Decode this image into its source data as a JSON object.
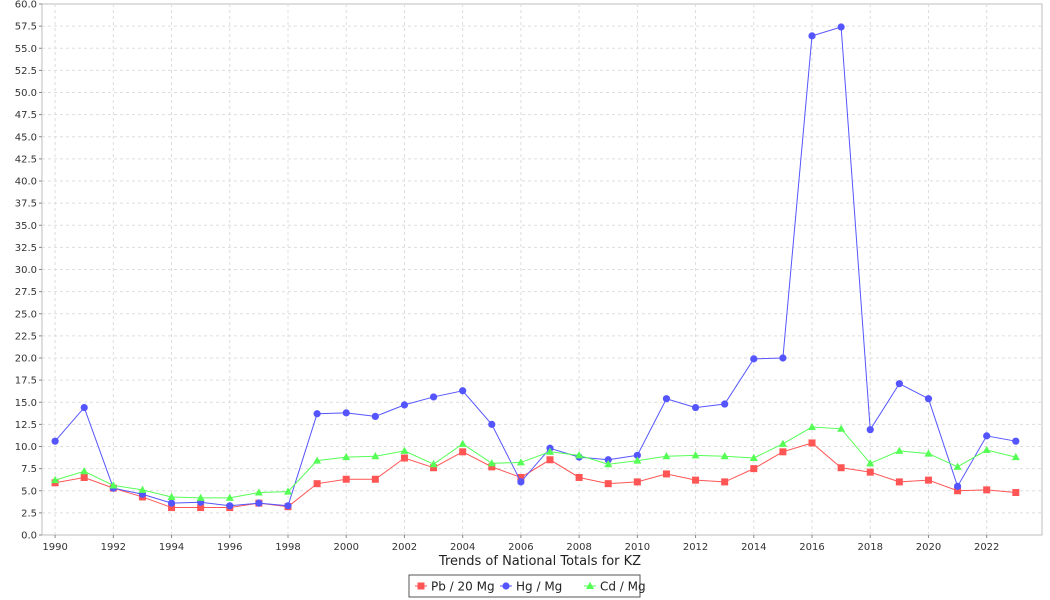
{
  "chart_data": {
    "type": "line",
    "title": "",
    "xlabel": "Trends of National Totals for KZ",
    "ylabel": "",
    "ylim": [
      0,
      60
    ],
    "yticks": [
      0.0,
      2.5,
      5.0,
      7.5,
      10.0,
      12.5,
      15.0,
      17.5,
      20.0,
      22.5,
      25.0,
      27.5,
      30.0,
      32.5,
      35.0,
      37.5,
      40.0,
      42.5,
      45.0,
      47.5,
      50.0,
      52.5,
      55.0,
      57.5,
      60.0
    ],
    "xticks": [
      1990,
      1992,
      1994,
      1996,
      1998,
      2000,
      2002,
      2004,
      2006,
      2008,
      2010,
      2012,
      2014,
      2016,
      2018,
      2020,
      2022
    ],
    "grid": true,
    "legend_position": "bottom",
    "x": [
      1990,
      1991,
      1992,
      1993,
      1994,
      1995,
      1996,
      1997,
      1998,
      1999,
      2000,
      2001,
      2002,
      2003,
      2004,
      2005,
      2006,
      2007,
      2008,
      2009,
      2010,
      2011,
      2012,
      2013,
      2014,
      2015,
      2016,
      2017,
      2018,
      2019,
      2020,
      2021,
      2022,
      2023
    ],
    "series": [
      {
        "name": "Pb / 20 Mg",
        "color": "#ff5555",
        "marker": "square",
        "values": [
          5.9,
          6.5,
          5.3,
          4.3,
          3.1,
          3.1,
          3.1,
          3.6,
          3.2,
          5.8,
          6.3,
          6.3,
          8.7,
          7.6,
          9.4,
          7.7,
          6.5,
          8.5,
          6.5,
          5.8,
          6.0,
          6.9,
          6.2,
          6.0,
          7.5,
          9.4,
          10.4,
          7.6,
          7.1,
          6.0,
          6.2,
          5.0,
          5.1,
          4.8
        ]
      },
      {
        "name": "Hg / Mg",
        "color": "#5555ff",
        "marker": "circle",
        "values": [
          10.6,
          14.4,
          5.3,
          4.6,
          3.6,
          3.7,
          3.3,
          3.6,
          3.3,
          13.7,
          13.8,
          13.4,
          14.7,
          15.6,
          16.3,
          12.5,
          6.0,
          9.8,
          8.8,
          8.5,
          9.0,
          15.4,
          14.4,
          14.8,
          19.9,
          20.0,
          56.4,
          57.4,
          11.9,
          17.1,
          15.4,
          5.5,
          11.2,
          10.6
        ]
      },
      {
        "name": "Cd / Mg",
        "color": "#55ff55",
        "marker": "triangle",
        "values": [
          6.2,
          7.2,
          5.6,
          5.1,
          4.3,
          4.2,
          4.2,
          4.8,
          4.9,
          8.4,
          8.8,
          8.9,
          9.5,
          8.0,
          10.3,
          8.1,
          8.2,
          9.4,
          9.0,
          8.0,
          8.4,
          8.9,
          9.0,
          8.9,
          8.7,
          10.3,
          12.2,
          12.0,
          8.1,
          9.5,
          9.2,
          7.7,
          9.6,
          8.8
        ]
      }
    ]
  }
}
